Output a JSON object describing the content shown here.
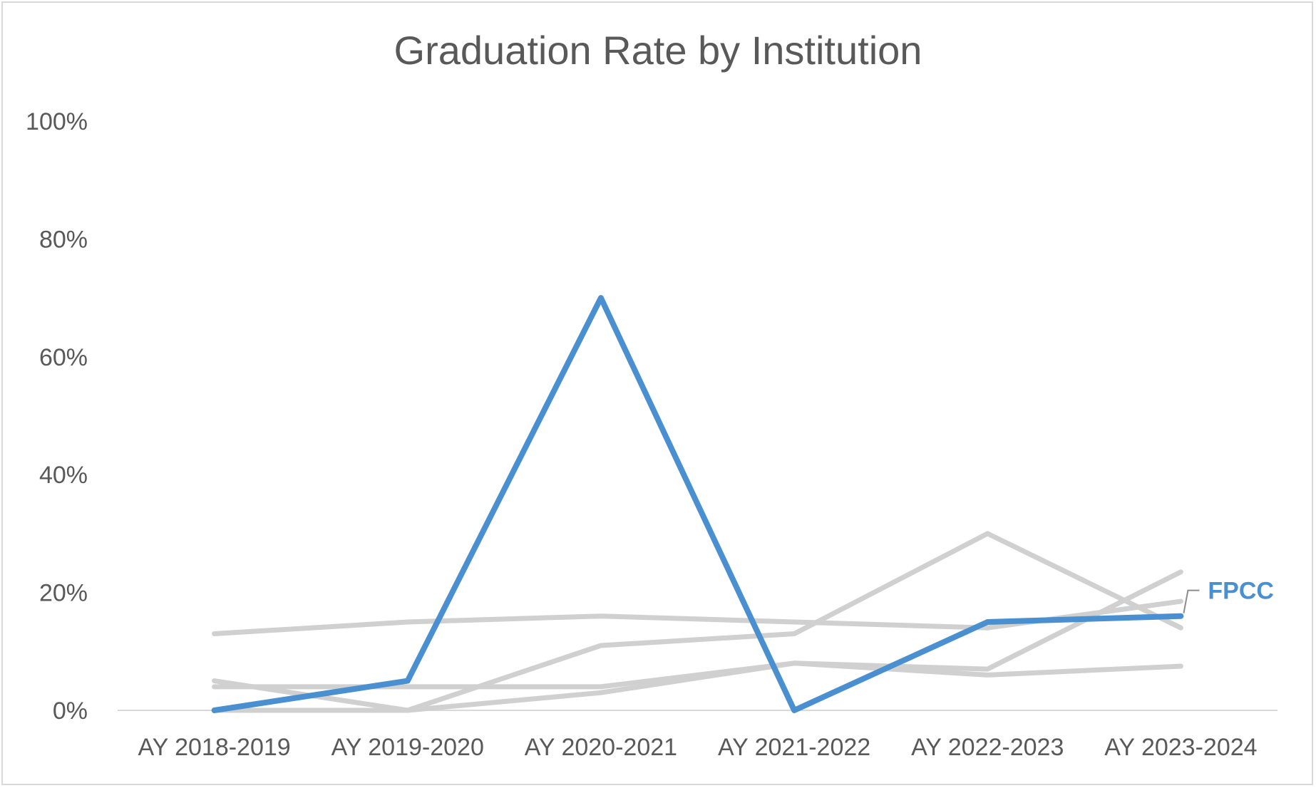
{
  "chart_data": {
    "type": "line",
    "title": "Graduation Rate by Institution",
    "xlabel": "",
    "ylabel": "",
    "categories": [
      "AY 2018-2019",
      "AY 2019-2020",
      "AY 2020-2021",
      "AY 2021-2022",
      "AY 2022-2023",
      "AY 2023-2024"
    ],
    "ylim": [
      0,
      100
    ],
    "yticks": [
      "0%",
      "20%",
      "40%",
      "60%",
      "80%",
      "100%"
    ],
    "ytick_values": [
      0,
      20,
      40,
      60,
      80,
      100
    ],
    "grid": false,
    "legend": "none",
    "series": [
      {
        "color": "#d0d0d0",
        "values": [
          13,
          15,
          16,
          15,
          14,
          18.5
        ]
      },
      {
        "color": "#d0d0d0",
        "values": [
          5,
          0,
          11,
          13,
          30,
          14
        ]
      },
      {
        "color": "#d0d0d0",
        "values": [
          4,
          4,
          4,
          8,
          6,
          7.5
        ]
      },
      {
        "color": "#d0d0d0",
        "values": [
          0,
          0,
          3,
          8,
          7,
          23.5
        ]
      },
      {
        "name": "FPCC",
        "color": "#4a90d0",
        "values": [
          0,
          5,
          70,
          0,
          15,
          16
        ],
        "highlight": true
      }
    ]
  }
}
